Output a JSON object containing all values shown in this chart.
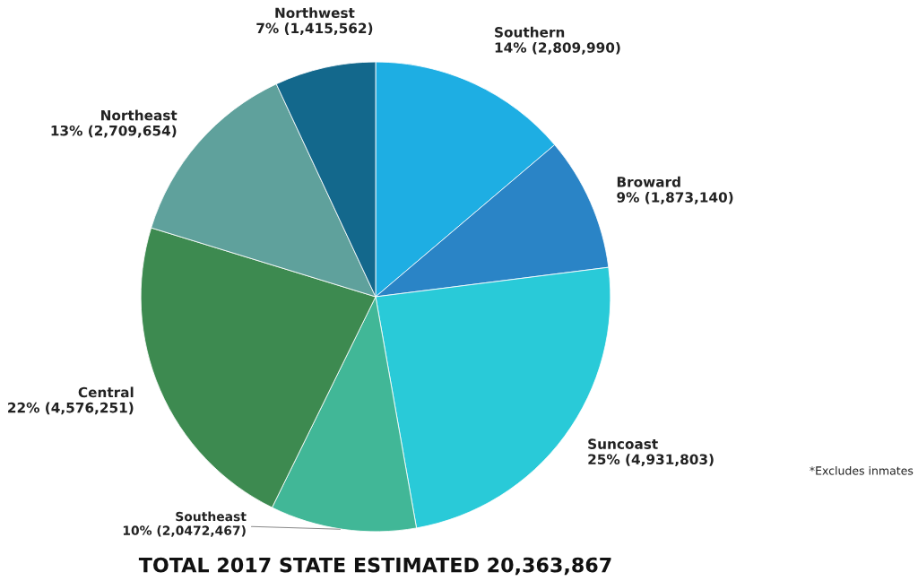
{
  "chart_data": {
    "type": "pie",
    "title": "TOTAL 2017 STATE ESTIMATED 20,363,867",
    "categories": [
      "Southern",
      "Broward",
      "Suncoast",
      "Southeast",
      "Central",
      "Northeast",
      "Northwest"
    ],
    "values": [
      2809990,
      1873140,
      4931803,
      2047467,
      4576251,
      2709654,
      1415562
    ],
    "value_labels": [
      "14% (2,809,990)",
      "9% (1,873,140)",
      "25% (4,931,803)",
      "10% (2,0472,467)",
      "22% (4,576,251)",
      "13% (2,709,654)",
      "7% (1,415,562)"
    ],
    "colors": [
      "#1eaee3",
      "#2a84c6",
      "#29cad8",
      "#41b797",
      "#3d8a50",
      "#5fa19c",
      "#13688c"
    ],
    "annotations": [
      "*Excludes inmates"
    ]
  }
}
